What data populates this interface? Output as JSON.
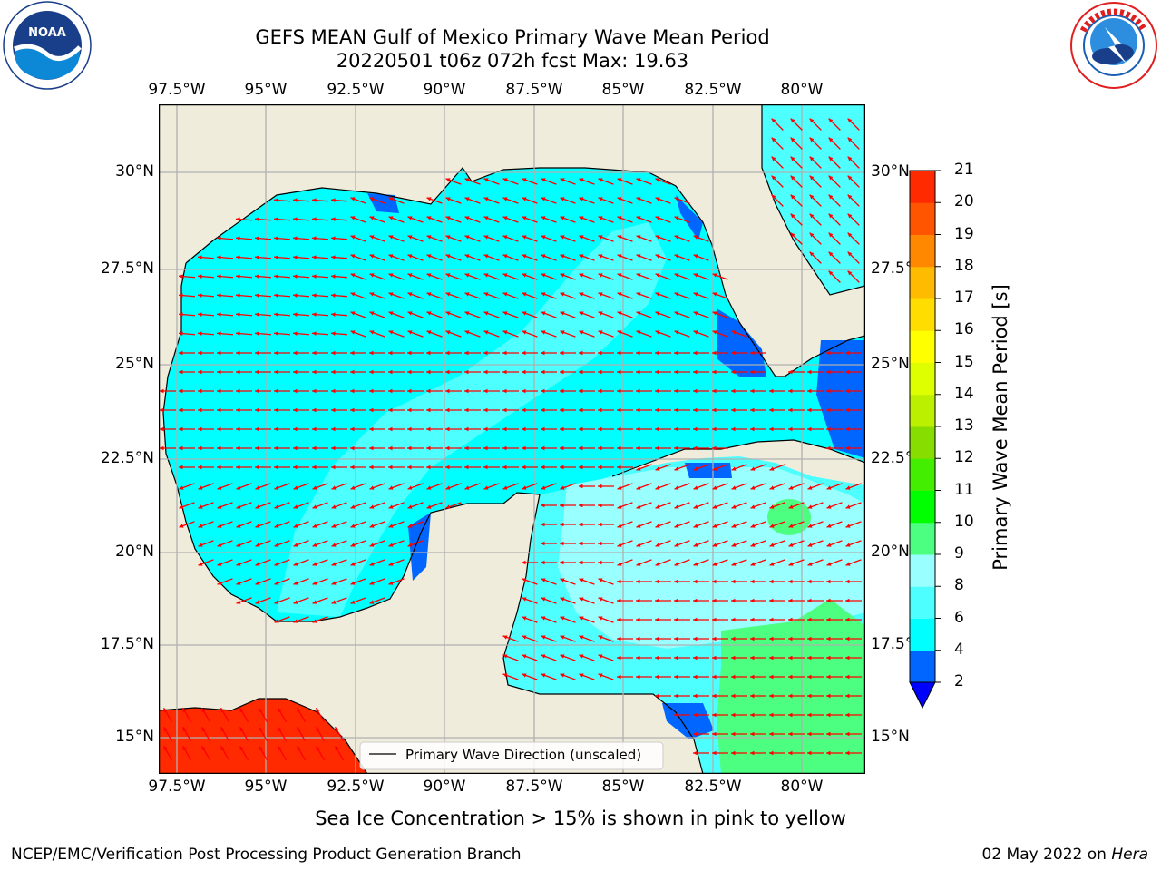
{
  "title": {
    "line1": "GEFS MEAN Gulf of Mexico Primary Wave Mean Period",
    "line2": "20220501 t06z 072h fcst   Max: 19.63"
  },
  "logos": {
    "left_icon": "noaa-logo-icon",
    "left_text": "NOAA",
    "left_ring_text": "NATIONAL OCEANIC AND ATMOSPHERIC ADMINISTRATION • U.S. DEPARTMENT OF COMMERCE",
    "right_icon": "national-weather-service-logo-icon",
    "right_ring_text": "NATIONAL WEATHER SERVICE"
  },
  "map": {
    "lon_ticks": [
      "97.5°W",
      "95°W",
      "92.5°W",
      "90°W",
      "87.5°W",
      "85°W",
      "82.5°W",
      "80°W"
    ],
    "lon_values": [
      -97.5,
      -95,
      -92.5,
      -90,
      -87.5,
      -85,
      -82.5,
      -80
    ],
    "lat_ticks": [
      "15°N",
      "17.5°N",
      "20°N",
      "22.5°N",
      "25°N",
      "27.5°N",
      "30°N"
    ],
    "lat_values": [
      15,
      17.5,
      20,
      22.5,
      25,
      27.5,
      30
    ],
    "extent": {
      "lon": [
        -98,
        -78.2
      ],
      "lat": [
        14,
        31.8
      ]
    },
    "legend_label": "Primary Wave Direction (unscaled)",
    "colors": {
      "land": "#efecdc",
      "grid": "#b0b0b0",
      "arrow": "#ff0000",
      "coast": "#000000"
    }
  },
  "colorbar": {
    "label": "Primary Wave Mean Period [s]",
    "ticks": [
      "2",
      "4",
      "6",
      "8",
      "9",
      "10",
      "11",
      "12",
      "13",
      "14",
      "15",
      "16",
      "17",
      "18",
      "19",
      "20",
      "21"
    ],
    "colors": [
      "#0066ff",
      "#00ffff",
      "#4dffff",
      "#99ffff",
      "#4dff80",
      "#00ff00",
      "#44ee00",
      "#88dd00",
      "#bbf000",
      "#ddff00",
      "#ffff00",
      "#ffdd00",
      "#ffbb00",
      "#ff8800",
      "#ff5500",
      "#ff2a00"
    ],
    "under_color": "#0000ff"
  },
  "subtitle": "Sea Ice Concentration > 15% is shown in pink to yellow",
  "footer": {
    "left": "NCEP/EMC/Verification Post Processing Product Generation Branch",
    "right_prefix": "02 May 2022 on ",
    "right_host": "Hera"
  }
}
